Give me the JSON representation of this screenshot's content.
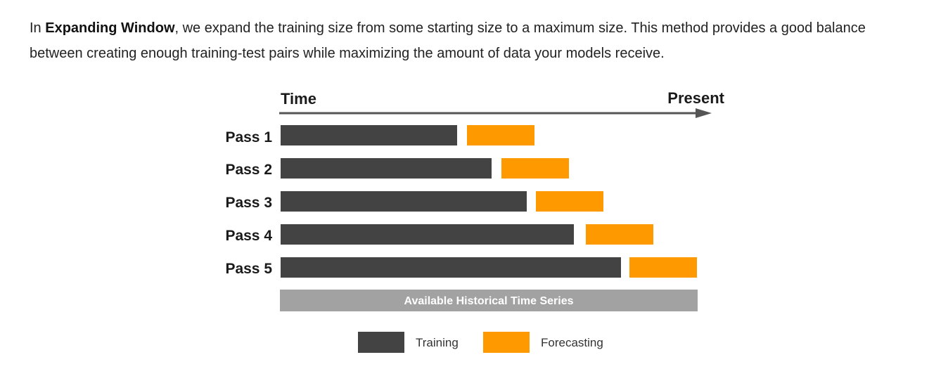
{
  "intro": {
    "prefix": "In ",
    "term": "Expanding Window",
    "rest_line1": ", we expand the training size from some starting size to a maximum size. This method provides a good balance",
    "line2": "between creating enough training-test pairs while maximizing the amount of data your models receive."
  },
  "diagram": {
    "time_label": "Time",
    "present_label": "Present",
    "band_label": "Available Historical Time Series",
    "colors": {
      "training": "#434343",
      "forecasting": "#ff9900",
      "band": "#a2a2a2",
      "arrow": "#555555"
    },
    "passes": [
      {
        "label": "Pass 1"
      },
      {
        "label": "Pass 2"
      },
      {
        "label": "Pass 3"
      },
      {
        "label": "Pass 4"
      },
      {
        "label": "Pass 5"
      }
    ],
    "legend": {
      "training": "Training",
      "forecasting": "Forecasting"
    }
  }
}
